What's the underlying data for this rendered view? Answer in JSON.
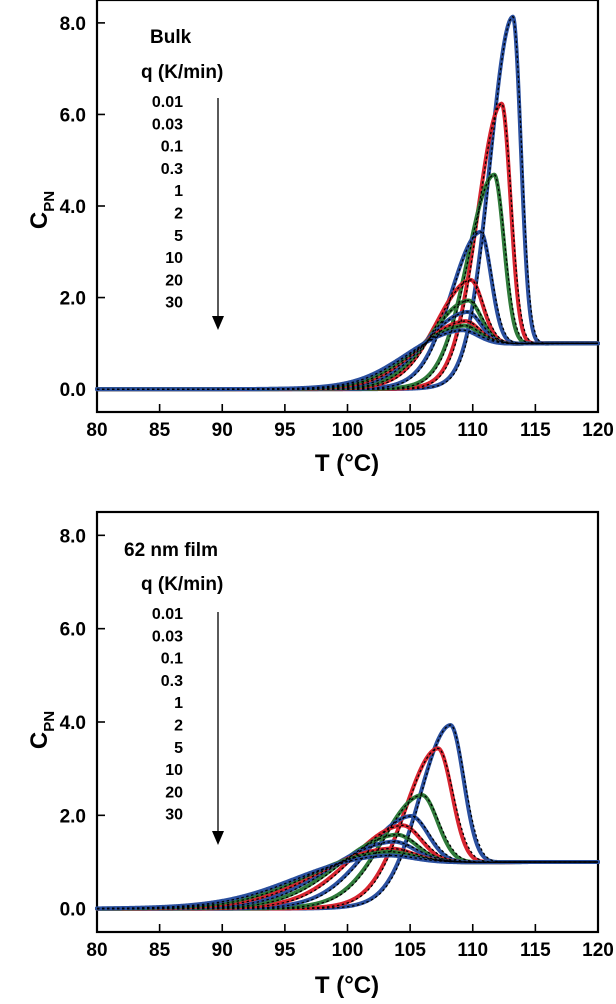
{
  "chart_data": [
    {
      "type": "line",
      "panel_label": "Bulk",
      "legend_title": "q (K/min)",
      "legend_items": [
        "0.01",
        "0.03",
        "0.1",
        "0.3",
        "1",
        "2",
        "5",
        "10",
        "20",
        "30"
      ],
      "xlabel": "T (°C)",
      "ylabel_main": "C",
      "ylabel_sub": "PN",
      "xlim": [
        80,
        120
      ],
      "ylim": [
        -0.5,
        8.5
      ],
      "xticks": [
        "80",
        "85",
        "90",
        "95",
        "100",
        "105",
        "110",
        "115",
        "120"
      ],
      "yticks": [
        "0.0",
        "2.0",
        "4.0",
        "6.0",
        "8.0"
      ],
      "baseline_end": 1.0,
      "series": [
        {
          "color": "#2a4f9e",
          "peak_x": 113.2,
          "peak_y": 8.2,
          "width_left": 2.5,
          "width_right": 0.9
        },
        {
          "color": "#d6242f",
          "peak_x": 112.3,
          "peak_y": 6.3,
          "width_left": 2.6,
          "width_right": 1.0
        },
        {
          "color": "#2f7a3a",
          "peak_x": 111.7,
          "peak_y": 4.75,
          "width_left": 2.8,
          "width_right": 1.1
        },
        {
          "color": "#2a4f9e",
          "peak_x": 110.6,
          "peak_y": 3.5,
          "width_left": 3.0,
          "width_right": 1.2
        },
        {
          "color": "#d6242f",
          "peak_x": 109.8,
          "peak_y": 2.45,
          "width_left": 3.3,
          "width_right": 1.4
        },
        {
          "color": "#2f7a3a",
          "peak_x": 109.6,
          "peak_y": 2.0,
          "width_left": 3.5,
          "width_right": 1.5
        },
        {
          "color": "#2a4f9e",
          "peak_x": 109.5,
          "peak_y": 1.75,
          "width_left": 3.8,
          "width_right": 1.6
        },
        {
          "color": "#d6242f",
          "peak_x": 109.3,
          "peak_y": 1.55,
          "width_left": 4.0,
          "width_right": 1.7
        },
        {
          "color": "#2f7a3a",
          "peak_x": 109.2,
          "peak_y": 1.45,
          "width_left": 4.2,
          "width_right": 1.8
        },
        {
          "color": "#2a4f9e",
          "peak_x": 109.0,
          "peak_y": 1.35,
          "width_left": 4.4,
          "width_right": 1.9
        }
      ]
    },
    {
      "type": "line",
      "panel_label": "62 nm film",
      "legend_title": "q (K/min)",
      "legend_items": [
        "0.01",
        "0.03",
        "0.1",
        "0.3",
        "1",
        "2",
        "5",
        "10",
        "20",
        "30"
      ],
      "xlabel": "T (°C)",
      "ylabel_main": "C",
      "ylabel_sub": "PN",
      "xlim": [
        80,
        120
      ],
      "ylim": [
        -0.5,
        8.5
      ],
      "xticks": [
        "80",
        "85",
        "90",
        "95",
        "100",
        "105",
        "110",
        "115",
        "120"
      ],
      "yticks": [
        "0.0",
        "2.0",
        "4.0",
        "6.0",
        "8.0"
      ],
      "baseline_end": 1.0,
      "series": [
        {
          "color": "#2a4f9e",
          "peak_x": 108.2,
          "peak_y": 4.0,
          "width_left": 3.2,
          "width_right": 1.5
        },
        {
          "color": "#d6242f",
          "peak_x": 107.2,
          "peak_y": 3.5,
          "width_left": 3.4,
          "width_right": 1.6
        },
        {
          "color": "#2f7a3a",
          "peak_x": 105.9,
          "peak_y": 2.5,
          "width_left": 3.8,
          "width_right": 1.8
        },
        {
          "color": "#2a4f9e",
          "peak_x": 105.0,
          "peak_y": 2.05,
          "width_left": 4.2,
          "width_right": 2.0
        },
        {
          "color": "#d6242f",
          "peak_x": 104.3,
          "peak_y": 1.85,
          "width_left": 4.6,
          "width_right": 2.2
        },
        {
          "color": "#2f7a3a",
          "peak_x": 103.8,
          "peak_y": 1.65,
          "width_left": 5.0,
          "width_right": 2.4
        },
        {
          "color": "#2a4f9e",
          "peak_x": 103.5,
          "peak_y": 1.5,
          "width_left": 5.4,
          "width_right": 2.6
        },
        {
          "color": "#d6242f",
          "peak_x": 103.2,
          "peak_y": 1.35,
          "width_left": 5.8,
          "width_right": 2.8
        },
        {
          "color": "#2f7a3a",
          "peak_x": 103.0,
          "peak_y": 1.28,
          "width_left": 6.2,
          "width_right": 3.0
        },
        {
          "color": "#2a4f9e",
          "peak_x": 102.8,
          "peak_y": 1.2,
          "width_left": 6.6,
          "width_right": 3.2
        }
      ]
    }
  ]
}
